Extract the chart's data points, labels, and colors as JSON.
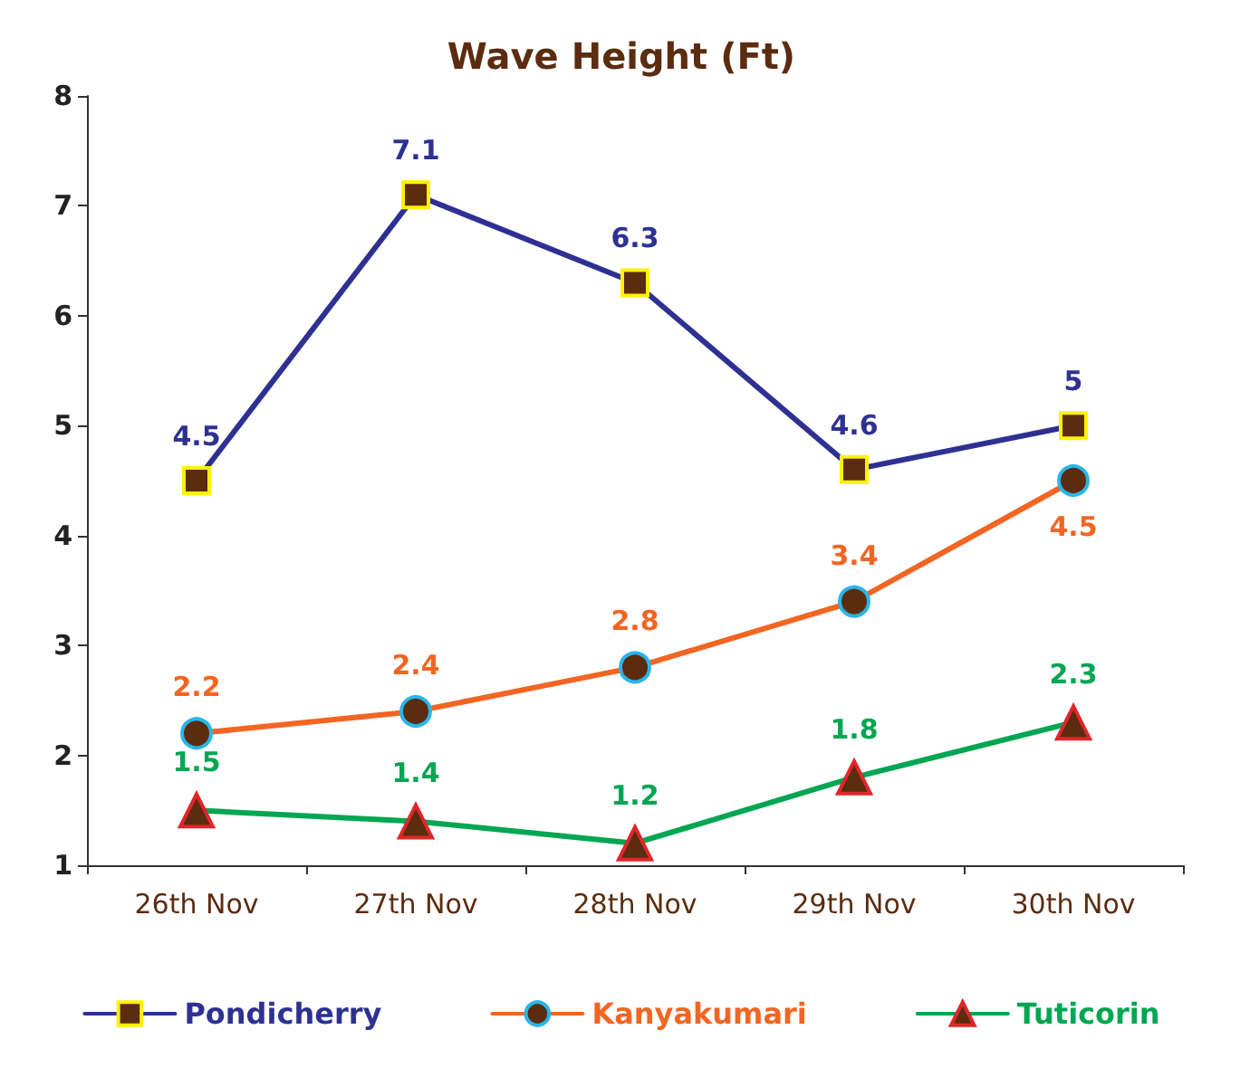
{
  "chart_data": {
    "type": "line",
    "title": "Wave Height (Ft)",
    "categories": [
      "26th Nov",
      "27th Nov",
      "28th Nov",
      "29th Nov",
      "30th Nov"
    ],
    "series": [
      {
        "name": "Pondicherry",
        "color": "#2e3192",
        "marker": "square",
        "values": [
          4.5,
          7.1,
          6.3,
          4.6,
          5
        ]
      },
      {
        "name": "Kanyakumari",
        "color": "#f26522",
        "marker": "circle",
        "values": [
          2.2,
          2.4,
          2.8,
          3.4,
          4.5
        ]
      },
      {
        "name": "Tuticorin",
        "color": "#00a651",
        "marker": "triangle",
        "values": [
          1.5,
          1.4,
          1.2,
          1.8,
          2.3
        ]
      }
    ],
    "ylim": [
      1,
      8
    ],
    "yticks": [
      1,
      2,
      3,
      4,
      5,
      6,
      7,
      8
    ],
    "grid": false,
    "legend": "bottom",
    "data_labels": true
  }
}
